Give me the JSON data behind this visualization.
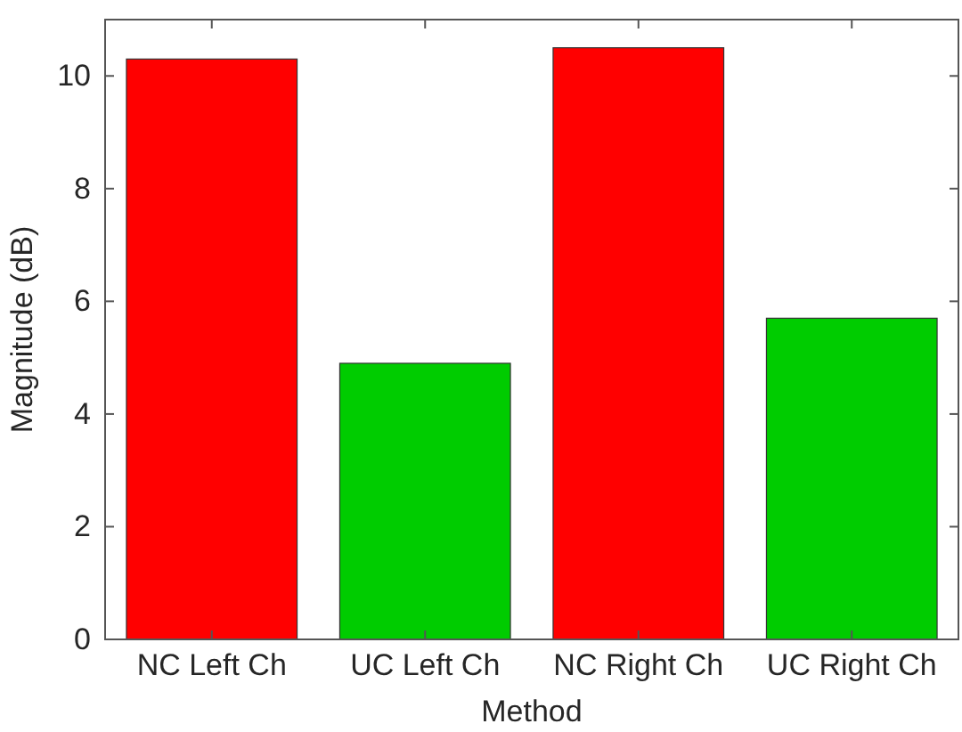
{
  "chart_data": {
    "type": "bar",
    "xlabel": "Method",
    "ylabel": "Magnitude (dB)",
    "categories": [
      "NC Left Ch",
      "UC Left Ch",
      "NC Right Ch",
      "UC Right Ch"
    ],
    "values": [
      10.3,
      4.9,
      10.5,
      5.7
    ],
    "colors": [
      "#ff0000",
      "#00cc00",
      "#ff0000",
      "#00cc00"
    ],
    "ylim": [
      0,
      11
    ],
    "yticks": [
      0,
      2,
      4,
      6,
      8,
      10
    ],
    "grid": false
  }
}
